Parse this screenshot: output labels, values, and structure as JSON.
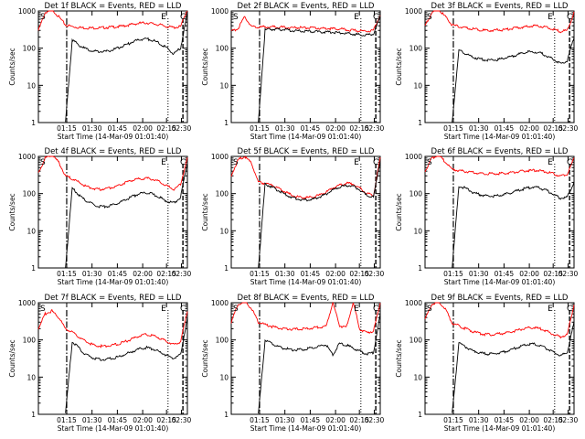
{
  "chart_data": [
    {
      "type": "line",
      "detector": "1f",
      "title": "Det 1f BLACK = Events, RED = LLD",
      "ylabel": "Counts/sec",
      "xlabel": "Start Time (14-Mar-09 01:01:40)",
      "x_ticks": [
        "01:15",
        "01:30",
        "01:45",
        "02:00",
        "02:15",
        "02:30"
      ],
      "y_ticks": [
        "1",
        "10",
        "100",
        "1000"
      ],
      "ylim": [
        1,
        1000
      ],
      "yscale": "log",
      "series": [
        {
          "color": "#ff0000",
          "values": [
            300,
            900,
            1100,
            700,
            420,
            380,
            360,
            350,
            350,
            350,
            360,
            370,
            380,
            410,
            440,
            470,
            480,
            450,
            420,
            380,
            360,
            380,
            1100
          ]
        },
        {
          "color": "#000000",
          "values": [
            null,
            null,
            null,
            null,
            0,
            170,
            120,
            95,
            85,
            80,
            82,
            90,
            105,
            125,
            150,
            170,
            180,
            160,
            130,
            100,
            70,
            100,
            900
          ]
        }
      ],
      "markers": {
        "S": "S",
        "E": "E",
        "C": "C"
      }
    },
    {
      "type": "line",
      "detector": "2f",
      "title": "Det 2f BLACK = Events, RED = LLD",
      "ylabel": "Counts/sec",
      "xlabel": "Start Time (14-Mar-09 01:01:40)",
      "x_ticks": [
        "01:15",
        "01:30",
        "01:45",
        "02:00",
        "02:15",
        "02:30"
      ],
      "y_ticks": [
        "1",
        "10",
        "100",
        "1000"
      ],
      "ylim": [
        1,
        1000
      ],
      "yscale": "log",
      "series": [
        {
          "color": "#ff0000",
          "values": [
            280,
            340,
            700,
            380,
            370,
            370,
            380,
            370,
            360,
            360,
            360,
            350,
            350,
            340,
            340,
            330,
            330,
            310,
            300,
            290,
            290,
            300,
            800
          ]
        },
        {
          "color": "#000000",
          "values": [
            null,
            null,
            null,
            null,
            0,
            310,
            320,
            320,
            310,
            300,
            290,
            285,
            280,
            275,
            270,
            265,
            260,
            250,
            240,
            230,
            225,
            240,
            700
          ]
        }
      ],
      "markers": {
        "S": "S",
        "E": "E",
        "C": "C"
      }
    },
    {
      "type": "line",
      "detector": "3f",
      "title": "Det 3f BLACK = Events, RED = LLD",
      "ylabel": "Counts/sec",
      "xlabel": "Start Time (14-Mar-09 01:01:40)",
      "x_ticks": [
        "01:15",
        "01:30",
        "01:45",
        "02:00",
        "02:15",
        "02:30"
      ],
      "y_ticks": [
        "1",
        "10",
        "100",
        "1000"
      ],
      "ylim": [
        1,
        1000
      ],
      "yscale": "log",
      "series": [
        {
          "color": "#ff0000",
          "values": [
            400,
            900,
            1100,
            700,
            420,
            380,
            350,
            330,
            310,
            300,
            300,
            310,
            320,
            340,
            360,
            380,
            400,
            390,
            360,
            320,
            280,
            300,
            900
          ]
        },
        {
          "color": "#000000",
          "values": [
            null,
            null,
            null,
            null,
            0,
            90,
            70,
            58,
            52,
            48,
            48,
            50,
            55,
            62,
            70,
            78,
            80,
            74,
            62,
            50,
            38,
            45,
            200
          ]
        }
      ],
      "markers": {
        "S": "S",
        "E": "E",
        "C": "C"
      }
    },
    {
      "type": "line",
      "detector": "4f",
      "title": "Det 4f BLACK = Events, RED = LLD",
      "ylabel": "Counts/sec",
      "xlabel": "Start Time (14-Mar-09 01:01:40)",
      "x_ticks": [
        "01:15",
        "01:30",
        "01:45",
        "02:00",
        "02:15",
        "02:30"
      ],
      "y_ticks": [
        "1",
        "10",
        "100",
        "1000"
      ],
      "ylim": [
        1,
        1000
      ],
      "yscale": "log",
      "series": [
        {
          "color": "#ff0000",
          "values": [
            350,
            900,
            1100,
            700,
            300,
            250,
            200,
            160,
            140,
            130,
            135,
            150,
            170,
            200,
            230,
            250,
            260,
            240,
            200,
            160,
            130,
            180,
            900
          ]
        },
        {
          "color": "#000000",
          "values": [
            null,
            null,
            null,
            null,
            0,
            140,
            90,
            65,
            52,
            45,
            45,
            50,
            58,
            70,
            85,
            100,
            105,
            95,
            78,
            62,
            55,
            80,
            700
          ]
        }
      ],
      "markers": {
        "S": "S",
        "E": "E",
        "C": "C"
      }
    },
    {
      "type": "line",
      "detector": "5f",
      "title": "Det 5f BLACK = Events, RED = LLD",
      "ylabel": "Counts/sec",
      "xlabel": "Start Time (14-Mar-09 01:01:40)",
      "x_ticks": [
        "01:15",
        "01:30",
        "01:45",
        "02:00",
        "02:15",
        "02:30"
      ],
      "y_ticks": [
        "1",
        "10",
        "100",
        "1000"
      ],
      "ylim": [
        1,
        1000
      ],
      "yscale": "log",
      "series": [
        {
          "color": "#ff0000",
          "values": [
            300,
            800,
            1000,
            650,
            200,
            190,
            170,
            140,
            110,
            90,
            80,
            78,
            80,
            90,
            110,
            140,
            170,
            190,
            180,
            140,
            100,
            90,
            900
          ]
        },
        {
          "color": "#000000",
          "values": [
            null,
            null,
            null,
            null,
            0,
            180,
            150,
            120,
            95,
            78,
            70,
            68,
            70,
            80,
            98,
            125,
            150,
            165,
            160,
            125,
            90,
            80,
            800
          ]
        }
      ],
      "markers": {
        "S": "S",
        "E": "E",
        "C": "C"
      }
    },
    {
      "type": "line",
      "detector": "6f",
      "title": "Det 6f BLACK = Events, RED = LLD",
      "ylabel": "Counts/sec",
      "xlabel": "Start Time (14-Mar-09 01:01:40)",
      "x_ticks": [
        "01:15",
        "01:30",
        "01:45",
        "02:00",
        "02:15",
        "02:30"
      ],
      "y_ticks": [
        "1",
        "10",
        "100",
        "1000"
      ],
      "ylim": [
        1,
        1000
      ],
      "yscale": "log",
      "series": [
        {
          "color": "#ff0000",
          "values": [
            400,
            900,
            1100,
            700,
            450,
            420,
            390,
            370,
            350,
            340,
            340,
            345,
            355,
            370,
            390,
            410,
            420,
            410,
            380,
            340,
            300,
            320,
            900
          ]
        },
        {
          "color": "#000000",
          "values": [
            null,
            null,
            null,
            null,
            0,
            160,
            140,
            110,
            95,
            88,
            85,
            90,
            98,
            110,
            125,
            140,
            150,
            140,
            120,
            95,
            75,
            80,
            200
          ]
        }
      ],
      "markers": {
        "S": "S",
        "E": "E",
        "C": "C"
      }
    },
    {
      "type": "line",
      "detector": "7f",
      "title": "Det 7f BLACK = Events, RED = LLD",
      "ylabel": "Counts/sec",
      "xlabel": "Start Time (14-Mar-09 01:01:40)",
      "x_ticks": [
        "01:15",
        "01:30",
        "01:45",
        "02:00",
        "02:15",
        "02:30"
      ],
      "y_ticks": [
        "1",
        "10",
        "100",
        "1000"
      ],
      "ylim": [
        1,
        1000
      ],
      "yscale": "log",
      "series": [
        {
          "color": "#ff0000",
          "values": [
            200,
            500,
            600,
            400,
            200,
            160,
            120,
            90,
            75,
            68,
            68,
            72,
            80,
            92,
            110,
            130,
            140,
            130,
            110,
            90,
            75,
            90,
            600
          ]
        },
        {
          "color": "#000000",
          "values": [
            null,
            null,
            null,
            null,
            0,
            90,
            60,
            40,
            33,
            30,
            30,
            32,
            36,
            42,
            50,
            58,
            62,
            56,
            46,
            38,
            32,
            40,
            400
          ]
        }
      ],
      "markers": {
        "S": "S",
        "E": "E",
        "C": "C"
      }
    },
    {
      "type": "line",
      "detector": "8f",
      "title": "Det 8f BLACK = Events, RED = LLD",
      "ylabel": "Counts/sec",
      "xlabel": "Start Time (14-Mar-09 01:01:40)",
      "x_ticks": [
        "01:15",
        "01:30",
        "01:45",
        "02:00",
        "02:15",
        "02:30"
      ],
      "y_ticks": [
        "1",
        "10",
        "100",
        "1000"
      ],
      "ylim": [
        1,
        1000
      ],
      "yscale": "log",
      "series": [
        {
          "color": "#ff0000",
          "values": [
            300,
            900,
            1100,
            700,
            300,
            260,
            230,
            210,
            200,
            195,
            195,
            200,
            210,
            220,
            230,
            1000,
            240,
            220,
            1000,
            190,
            160,
            170,
            1000
          ]
        },
        {
          "color": "#000000",
          "values": [
            null,
            null,
            null,
            null,
            0,
            100,
            80,
            65,
            58,
            54,
            54,
            57,
            62,
            68,
            75,
            40,
            80,
            72,
            60,
            50,
            42,
            45,
            500
          ]
        }
      ],
      "markers": {
        "S": "S",
        "E": "E",
        "C": "C"
      }
    },
    {
      "type": "line",
      "detector": "9f",
      "title": "Det 9f BLACK = Events, RED = LLD",
      "ylabel": "Counts/sec",
      "xlabel": "Start Time (14-Mar-09 01:01:40)",
      "x_ticks": [
        "01:15",
        "01:30",
        "01:45",
        "02:00",
        "02:15",
        "02:30"
      ],
      "y_ticks": [
        "1",
        "10",
        "100",
        "1000"
      ],
      "ylim": [
        1,
        1000
      ],
      "yscale": "log",
      "series": [
        {
          "color": "#ff0000",
          "values": [
            350,
            900,
            1100,
            700,
            280,
            240,
            200,
            170,
            150,
            140,
            140,
            145,
            155,
            170,
            190,
            210,
            215,
            200,
            170,
            140,
            120,
            140,
            900
          ]
        },
        {
          "color": "#000000",
          "values": [
            null,
            null,
            null,
            null,
            0,
            85,
            65,
            52,
            45,
            42,
            42,
            45,
            50,
            57,
            66,
            75,
            78,
            70,
            58,
            46,
            38,
            45,
            300
          ]
        }
      ],
      "markers": {
        "S": "S",
        "E": "E",
        "C": "C"
      }
    }
  ]
}
